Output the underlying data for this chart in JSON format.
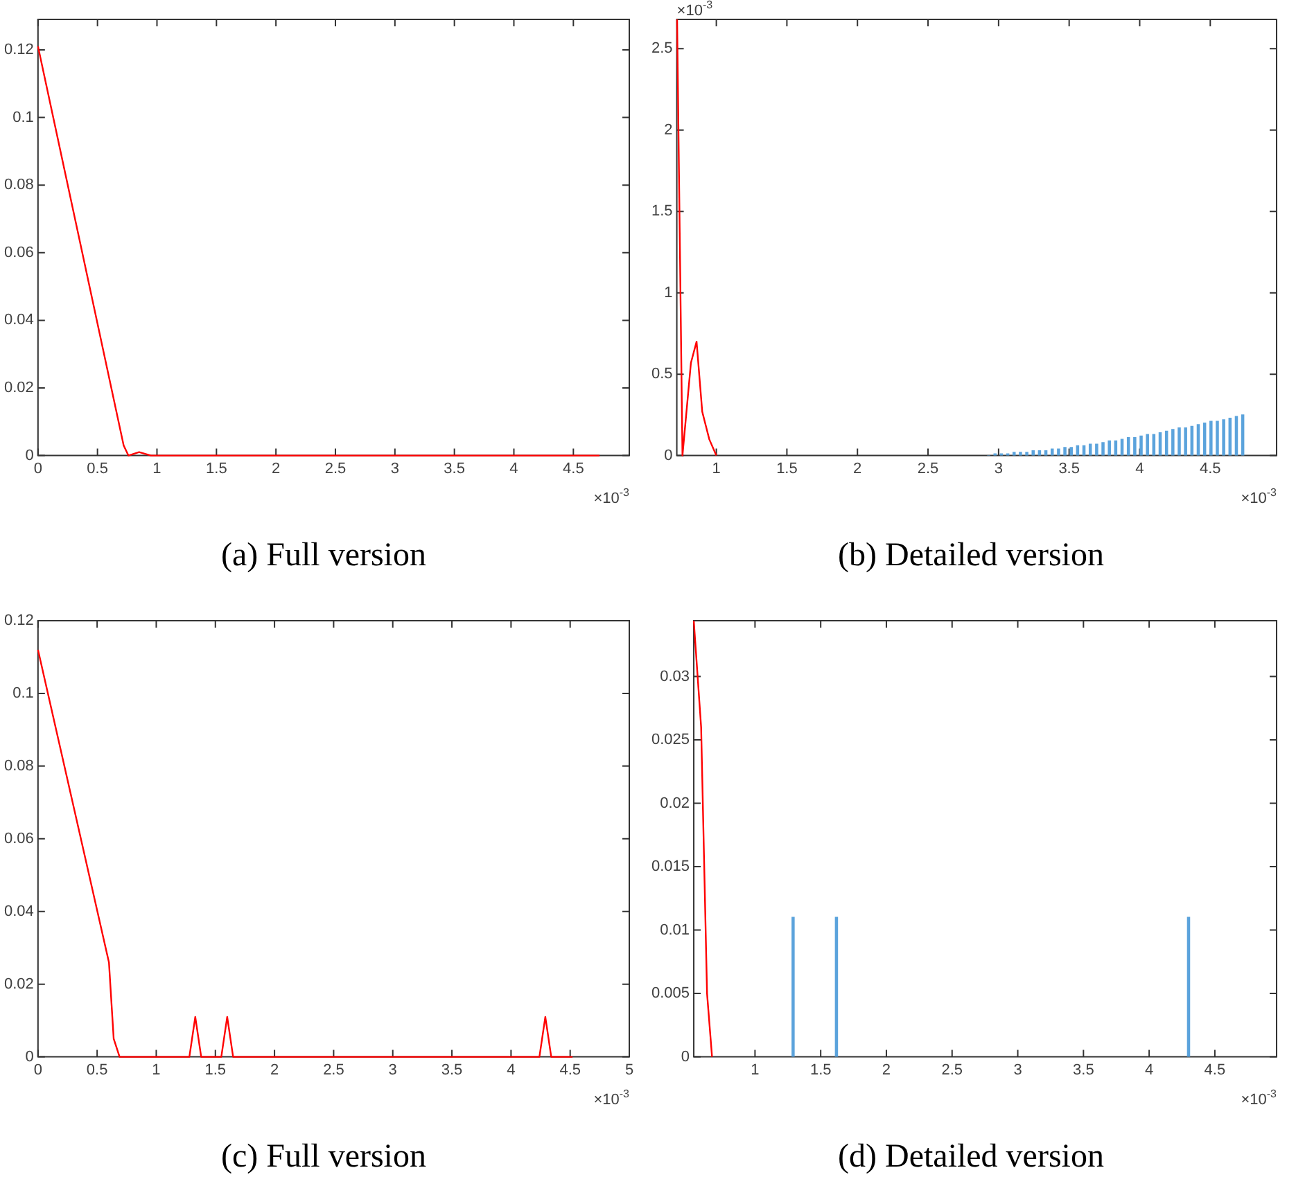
{
  "chart_data": [
    {
      "type": "line",
      "title": "(a) Full version",
      "xlim": [
        0,
        4.97
      ],
      "ylim": [
        0,
        0.129
      ],
      "xticks": [
        0,
        0.5,
        1,
        1.5,
        2,
        2.5,
        3,
        3.5,
        4,
        4.5
      ],
      "yticks": [
        0,
        0.02,
        0.04,
        0.06,
        0.08,
        0.1,
        0.12
      ],
      "annotations": [
        "×10$^{-3}$"
      ],
      "series": [
        {
          "color": "#ff0000",
          "x": [
            0,
            0.72,
            0.76,
            0.85,
            0.95,
            4.72
          ],
          "values": [
            0.121,
            0.003,
            0,
            0.001,
            0,
            0
          ]
        }
      ]
    },
    {
      "type": "line",
      "title": "(b) Detailed version",
      "xlim": [
        0.72,
        4.97
      ],
      "ylim": [
        0,
        2.68
      ],
      "xticks": [
        1,
        1.5,
        2,
        2.5,
        3,
        3.5,
        4,
        4.5
      ],
      "yticks": [
        0,
        0.5,
        1,
        1.5,
        2,
        2.5
      ],
      "annotations": [
        "×10$^{-3}$",
        "×10$^{-3}$"
      ],
      "series": [
        {
          "color": "#ff0000",
          "x": [
            0.722,
            0.76,
            0.82,
            0.86,
            0.9,
            0.95,
            1.0
          ],
          "values": [
            2.68,
            0,
            0.57,
            0.7,
            0.27,
            0.1,
            0
          ]
        },
        {
          "type": "bar",
          "color": "#5ba3dc",
          "x": [
            2.93,
            2.975,
            3.02,
            3.065,
            3.11,
            3.155,
            3.2,
            3.245,
            3.29,
            3.335,
            3.38,
            3.425,
            3.47,
            3.515,
            3.56,
            3.605,
            3.65,
            3.695,
            3.74,
            3.785,
            3.83,
            3.875,
            3.92,
            3.965,
            4.01,
            4.055,
            4.1,
            4.145,
            4.19,
            4.235,
            4.28,
            4.325,
            4.37,
            4.415,
            4.46,
            4.505,
            4.55,
            4.595,
            4.64,
            4.685,
            4.73
          ],
          "values": [
            0,
            0.01,
            0.01,
            0.01,
            0.02,
            0.02,
            0.02,
            0.03,
            0.03,
            0.03,
            0.04,
            0.04,
            0.05,
            0.05,
            0.06,
            0.06,
            0.07,
            0.07,
            0.08,
            0.09,
            0.09,
            0.1,
            0.11,
            0.11,
            0.12,
            0.13,
            0.13,
            0.14,
            0.15,
            0.16,
            0.17,
            0.17,
            0.18,
            0.19,
            0.2,
            0.21,
            0.21,
            0.22,
            0.23,
            0.24,
            0.25
          ]
        }
      ]
    },
    {
      "type": "line",
      "title": "(c) Full version",
      "xlim": [
        0,
        5
      ],
      "ylim": [
        0,
        0.12
      ],
      "xticks": [
        0,
        0.5,
        1,
        1.5,
        2,
        2.5,
        3,
        3.5,
        4,
        4.5,
        5
      ],
      "yticks": [
        0,
        0.02,
        0.04,
        0.06,
        0.08,
        0.1,
        0.12
      ],
      "annotations": [
        "×10$^{-3}$"
      ],
      "series": [
        {
          "color": "#ff0000",
          "x": [
            0,
            0.6,
            0.64,
            0.69,
            1.28,
            1.33,
            1.38,
            1.55,
            1.6,
            1.65,
            4.24,
            4.29,
            4.34,
            4.52
          ],
          "values": [
            0.112,
            0.026,
            0.005,
            0,
            0,
            0.011,
            0,
            0,
            0.011,
            0,
            0,
            0.011,
            0,
            0
          ]
        }
      ]
    },
    {
      "type": "line",
      "title": "(d) Detailed version",
      "xlim": [
        0.534,
        4.97
      ],
      "ylim": [
        0,
        0.0344
      ],
      "xticks": [
        1,
        1.5,
        2,
        2.5,
        3,
        3.5,
        4,
        4.5
      ],
      "yticks": [
        0,
        0.005,
        0.01,
        0.015,
        0.02,
        0.025,
        0.03
      ],
      "annotations": [
        "×10$^{-3}$"
      ],
      "series": [
        {
          "color": "#ff0000",
          "x": [
            0.534,
            0.59,
            0.635,
            0.673
          ],
          "values": [
            0.0344,
            0.026,
            0.005,
            0
          ]
        },
        {
          "type": "bar",
          "color": "#5ba3dc",
          "x": [
            1.29,
            1.62,
            4.3
          ],
          "values": [
            0.011,
            0.011,
            0.011
          ]
        }
      ]
    }
  ]
}
